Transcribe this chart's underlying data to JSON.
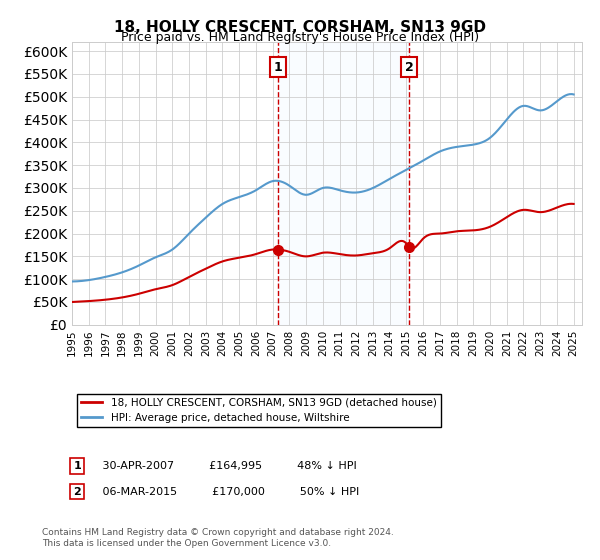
{
  "title": "18, HOLLY CRESCENT, CORSHAM, SN13 9GD",
  "subtitle": "Price paid vs. HM Land Registry's House Price Index (HPI)",
  "ylabel_ticks": [
    "£0",
    "£50K",
    "£100K",
    "£150K",
    "£200K",
    "£250K",
    "£300K",
    "£350K",
    "£400K",
    "£450K",
    "£500K",
    "£550K",
    "£600K"
  ],
  "ylim": [
    0,
    620000
  ],
  "ytick_values": [
    0,
    50000,
    100000,
    150000,
    200000,
    250000,
    300000,
    350000,
    400000,
    450000,
    500000,
    550000,
    600000
  ],
  "xlim_start": 1995.0,
  "xlim_end": 2025.5,
  "sale1_x": 2007.33,
  "sale1_y": 164995,
  "sale1_label": "1",
  "sale1_date": "30-APR-2007",
  "sale1_price": "£164,995",
  "sale1_pct": "48% ↓ HPI",
  "sale2_x": 2015.17,
  "sale2_y": 170000,
  "sale2_label": "2",
  "sale2_date": "06-MAR-2015",
  "sale2_price": "£170,000",
  "sale2_pct": "50% ↓ HPI",
  "red_line_color": "#cc0000",
  "blue_line_color": "#5599cc",
  "highlight_color": "#ddeeff",
  "grid_color": "#cccccc",
  "annotation_box_color": "#cc0000",
  "legend_label_red": "18, HOLLY CRESCENT, CORSHAM, SN13 9GD (detached house)",
  "legend_label_blue": "HPI: Average price, detached house, Wiltshire",
  "footer": "Contains HM Land Registry data © Crown copyright and database right 2024.\nThis data is licensed under the Open Government Licence v3.0.",
  "background_color": "#ffffff"
}
